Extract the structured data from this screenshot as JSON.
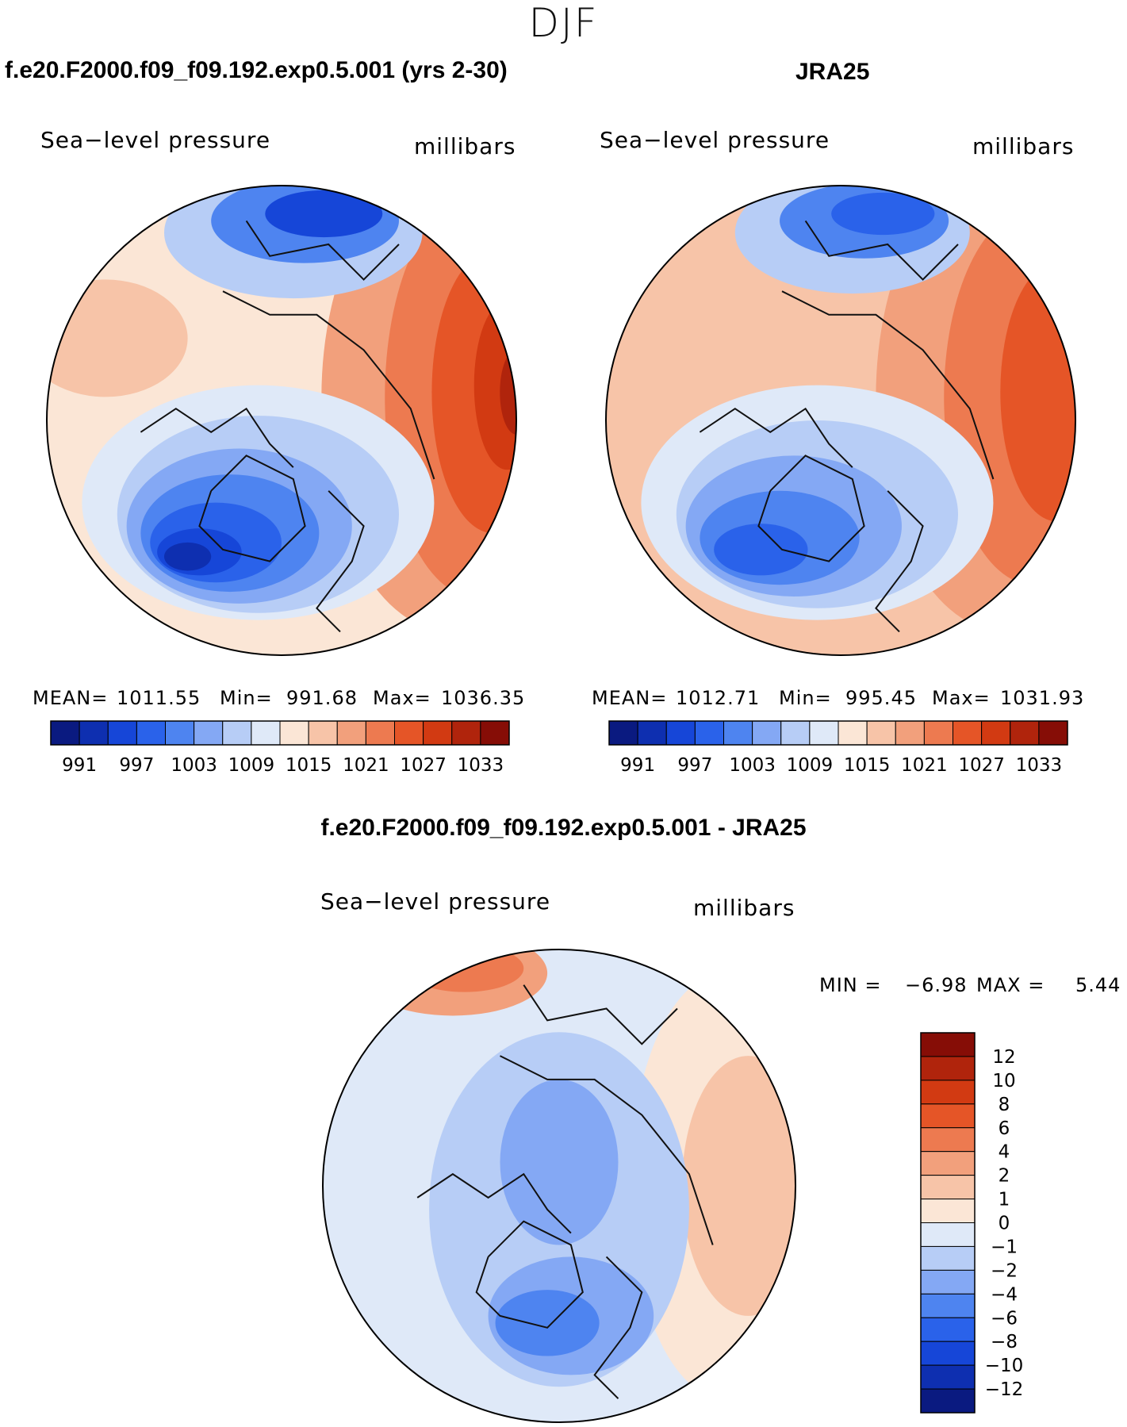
{
  "header": {
    "season": "DJF",
    "title_left": "f.e20.F2000.f09_f09.192.exp0.5.001 (yrs 2-30)",
    "title_right": "JRA25",
    "title_diff": "f.e20.F2000.f09_f09.192.exp0.5.001 - JRA25"
  },
  "panels": [
    {
      "variable": "Sea−level pressure",
      "units": "millibars",
      "mean_label": "MEAN=",
      "mean_value": "1011.55",
      "min_label": "Min=",
      "min_value": "991.68",
      "max_label": "Max=",
      "max_value": "1036.35"
    },
    {
      "variable": "Sea−level pressure",
      "units": "millibars",
      "mean_label": "MEAN=",
      "mean_value": "1012.71",
      "min_label": "Min=",
      "min_value": "995.45",
      "max_label": "Max=",
      "max_value": "1031.93"
    },
    {
      "variable": "Sea−level pressure",
      "units": "millibars",
      "min_label": "MIN =",
      "min_value": "−6.98",
      "max_label": "MAX =",
      "max_value": "5.44"
    }
  ],
  "colorbar_abs": {
    "colors": [
      "#0a1a80",
      "#0e2fb0",
      "#1646d8",
      "#2a62ea",
      "#4e84f0",
      "#84a8f4",
      "#b7cdf6",
      "#dfe9f8",
      "#fbe6d6",
      "#f7c4a8",
      "#f2a07c",
      "#ed7a50",
      "#e55527",
      "#d23a12",
      "#b0240c",
      "#860d06"
    ],
    "ticks": [
      "991",
      "997",
      "1003",
      "1009",
      "1015",
      "1021",
      "1027",
      "1033"
    ]
  },
  "colorbar_diff": {
    "colors": [
      "#0a1a80",
      "#0e2fb0",
      "#1646d8",
      "#2a62ea",
      "#4e84f0",
      "#84a8f4",
      "#b7cdf6",
      "#dfe9f8",
      "#fbe6d6",
      "#f7c4a8",
      "#f2a07c",
      "#ed7a50",
      "#e55527",
      "#d23a12",
      "#b0240c",
      "#860d06"
    ],
    "ticks": [
      "−12",
      "−10",
      "−8",
      "−6",
      "−4",
      "−2",
      "−1",
      "0",
      "1",
      "2",
      "4",
      "6",
      "8",
      "10",
      "12"
    ]
  },
  "chart_data": [
    {
      "type": "heatmap",
      "title": "f.e20.F2000.f09_f09.192.exp0.5.001 (yrs 2-30)",
      "projection": "north polar stereographic",
      "variable": "Sea-level pressure",
      "units": "millibars",
      "levels": [
        991,
        994,
        997,
        1000,
        1003,
        1006,
        1009,
        1012,
        1015,
        1018,
        1021,
        1024,
        1027,
        1030,
        1033
      ],
      "mean": 1011.55,
      "min": 991.68,
      "max": 1036.35
    },
    {
      "type": "heatmap",
      "title": "JRA25",
      "projection": "north polar stereographic",
      "variable": "Sea-level pressure",
      "units": "millibars",
      "levels": [
        991,
        994,
        997,
        1000,
        1003,
        1006,
        1009,
        1012,
        1015,
        1018,
        1021,
        1024,
        1027,
        1030,
        1033
      ],
      "mean": 1012.71,
      "min": 995.45,
      "max": 1031.93
    },
    {
      "type": "heatmap",
      "title": "f.e20.F2000.f09_f09.192.exp0.5.001 - JRA25",
      "projection": "north polar stereographic",
      "variable": "Sea-level pressure",
      "units": "millibars",
      "levels": [
        -12,
        -10,
        -8,
        -6,
        -4,
        -2,
        -1,
        0,
        1,
        2,
        4,
        6,
        8,
        10,
        12
      ],
      "min": -6.98,
      "max": 5.44
    }
  ]
}
